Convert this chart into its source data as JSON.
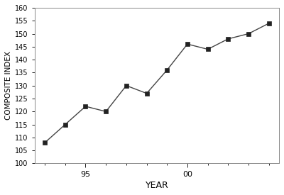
{
  "years": [
    1993,
    1994,
    1995,
    1996,
    1997,
    1998,
    1999,
    2000,
    2001,
    2002,
    2003,
    2004
  ],
  "composite_index": [
    108,
    115,
    122,
    120,
    130,
    127,
    136,
    146,
    144,
    148,
    150,
    154
  ],
  "xlim": [
    1992.5,
    2004.5
  ],
  "ylim": [
    100,
    160
  ],
  "yticks": [
    100,
    105,
    110,
    115,
    120,
    125,
    130,
    135,
    140,
    145,
    150,
    155,
    160
  ],
  "xtick_major_positions": [
    1995,
    2000
  ],
  "xtick_major_labels": [
    "95",
    "00"
  ],
  "xtick_minor_positions": [
    1993,
    1994,
    1995,
    1996,
    1997,
    1998,
    1999,
    2000,
    2001,
    2002,
    2003,
    2004
  ],
  "xlabel": "YEAR",
  "ylabel": "COMPOSITE INDEX",
  "line_color": "#444444",
  "marker": "s",
  "marker_color": "#222222",
  "marker_size": 4,
  "linewidth": 1.0,
  "background_color": "#ffffff",
  "plot_bg_color": "#ffffff"
}
